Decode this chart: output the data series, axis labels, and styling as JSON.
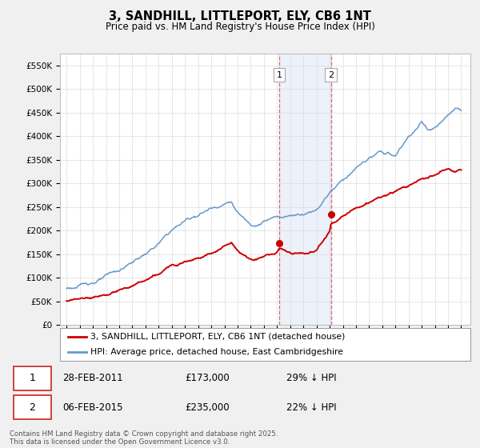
{
  "title": "3, SANDHILL, LITTLEPORT, ELY, CB6 1NT",
  "subtitle": "Price paid vs. HM Land Registry's House Price Index (HPI)",
  "legend_label_red": "3, SANDHILL, LITTLEPORT, ELY, CB6 1NT (detached house)",
  "legend_label_blue": "HPI: Average price, detached house, East Cambridgeshire",
  "annotation1_date": "28-FEB-2011",
  "annotation1_price": "£173,000",
  "annotation1_hpi": "29% ↓ HPI",
  "annotation2_date": "06-FEB-2015",
  "annotation2_price": "£235,000",
  "annotation2_hpi": "22% ↓ HPI",
  "footer": "Contains HM Land Registry data © Crown copyright and database right 2025.\nThis data is licensed under the Open Government Licence v3.0.",
  "sale1_year": 2011.16,
  "sale1_value": 173000,
  "sale2_year": 2015.09,
  "sale2_value": 235000,
  "ylim_min": 0,
  "ylim_max": 575000,
  "xlim_min": 1994.5,
  "xlim_max": 2025.7,
  "bg_color": "#f0f0f0",
  "plot_bg_color": "#ffffff",
  "red_color": "#cc0000",
  "blue_color": "#6699cc",
  "shade_color": "#ccd9ee",
  "shade_alpha": 0.35,
  "shade_x1": 2011.16,
  "shade_x2": 2015.09,
  "yticks": [
    0,
    50000,
    100000,
    150000,
    200000,
    250000,
    300000,
    350000,
    400000,
    450000,
    500000,
    550000
  ],
  "ytick_labels": [
    "£0",
    "£50K",
    "£100K",
    "£150K",
    "£200K",
    "£250K",
    "£300K",
    "£350K",
    "£400K",
    "£450K",
    "£500K",
    "£550K"
  ],
  "hpi_anchors_y": [
    1995,
    1996,
    1997,
    1998,
    1999,
    2000,
    2001,
    2002,
    2003,
    2004,
    2005,
    2006,
    2007,
    2007.5,
    2008,
    2008.5,
    2009,
    2009.5,
    2010,
    2011,
    2012,
    2013,
    2014,
    2015,
    2016,
    2017,
    2018,
    2019,
    2020,
    2021,
    2022,
    2022.5,
    2023,
    2024,
    2024.5,
    2025
  ],
  "hpi_anchors_v": [
    78000,
    82000,
    92000,
    102000,
    112000,
    130000,
    148000,
    168000,
    195000,
    215000,
    230000,
    245000,
    258000,
    265000,
    240000,
    225000,
    215000,
    220000,
    228000,
    235000,
    240000,
    248000,
    260000,
    300000,
    330000,
    355000,
    375000,
    385000,
    375000,
    415000,
    445000,
    430000,
    435000,
    455000,
    468000,
    462000
  ],
  "red_anchors_y": [
    1995,
    1996,
    1997,
    1998,
    1999,
    2000,
    2001,
    2002,
    2003,
    2004,
    2005,
    2006,
    2007,
    2007.5,
    2008,
    2008.5,
    2009,
    2010,
    2011,
    2011.16,
    2012,
    2013,
    2014,
    2015,
    2015.09,
    2016,
    2017,
    2018,
    2019,
    2020,
    2021,
    2022,
    2023,
    2024,
    2024.5,
    2025
  ],
  "red_anchors_v": [
    50000,
    52000,
    58000,
    65000,
    72000,
    80000,
    90000,
    100000,
    118000,
    135000,
    148000,
    158000,
    175000,
    182000,
    168000,
    158000,
    148000,
    155000,
    165000,
    173000,
    165000,
    168000,
    175000,
    220000,
    235000,
    255000,
    270000,
    285000,
    295000,
    305000,
    315000,
    330000,
    335000,
    350000,
    345000,
    348000
  ]
}
